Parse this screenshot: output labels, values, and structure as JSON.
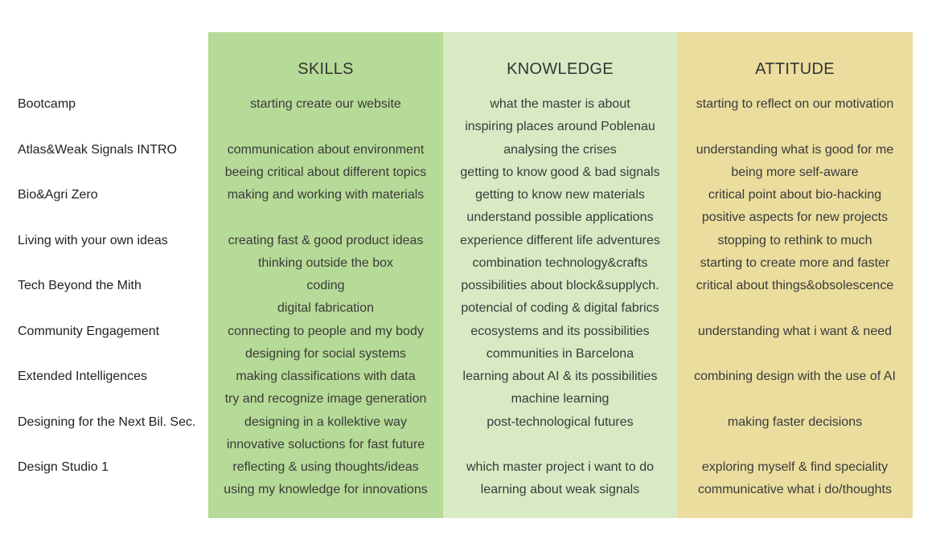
{
  "colors": {
    "skills": "#b6da97",
    "knowledge": "#d7eac4",
    "attitude": "#eadd9e"
  },
  "headers": {
    "skills": "SKILLS",
    "knowledge": "KNOWLEDGE",
    "attitude": "ATTITUDE"
  },
  "rows": [
    {
      "label": "Bootcamp",
      "skills": [
        "starting create our website",
        ""
      ],
      "knowledge": [
        "what the master is about",
        "inspiring places around Poblenau"
      ],
      "attitude": [
        "starting to reflect on our motivation",
        ""
      ]
    },
    {
      "label": "Atlas&Weak Signals INTRO",
      "skills": [
        "communication about environment",
        "beeing  critical about different topics"
      ],
      "knowledge": [
        "analysing the crises",
        "getting to know good & bad signals"
      ],
      "attitude": [
        "understanding what is good for me",
        "being more self-aware"
      ]
    },
    {
      "label": "Bio&Agri Zero",
      "skills": [
        "making and working with materials",
        ""
      ],
      "knowledge": [
        "getting to know new materials",
        "understand possible applications"
      ],
      "attitude": [
        "critical point about bio-hacking",
        "positive aspects for new projects"
      ]
    },
    {
      "label": "Living with your own ideas",
      "skills": [
        "creating fast & good product ideas",
        "thinking outside the box"
      ],
      "knowledge": [
        "experience different life adventures",
        "combination technology&crafts"
      ],
      "attitude": [
        "stopping to rethink to much",
        "starting to create more and faster"
      ]
    },
    {
      "label": "Tech Beyond the Mith",
      "skills": [
        "coding",
        "digital fabrication"
      ],
      "knowledge": [
        "possibilities about block&supplych.",
        "potencial of coding & digital fabrics"
      ],
      "attitude": [
        "critical about things&obsolescence",
        ""
      ]
    },
    {
      "label": "Community Engagement",
      "skills": [
        "connecting to people and my body",
        "designing for social systems"
      ],
      "knowledge": [
        "ecosystems and its possibilities",
        "communities in Barcelona"
      ],
      "attitude": [
        "understanding what i want & need",
        ""
      ]
    },
    {
      "label": "Extended Intelligences",
      "skills": [
        "making classifications with data",
        "try and recognize image generation"
      ],
      "knowledge": [
        "learning about AI & its possibilities",
        "machine learning"
      ],
      "attitude": [
        "combining design with the use of AI",
        ""
      ]
    },
    {
      "label": "Designing for the Next Bil. Sec.",
      "skills": [
        "designing in a kollektive way",
        "innovative soluctions for fast future"
      ],
      "knowledge": [
        "post-technological futures",
        ""
      ],
      "attitude": [
        "making faster decisions",
        ""
      ]
    },
    {
      "label": "Design Studio 1",
      "skills": [
        "reflecting & using thoughts/ideas",
        "using my knowledge for innovations"
      ],
      "knowledge": [
        "which master project i want to do",
        "learning about weak signals"
      ],
      "attitude": [
        "exploring myself & find speciality",
        "communicative what i do/thoughts"
      ]
    }
  ]
}
